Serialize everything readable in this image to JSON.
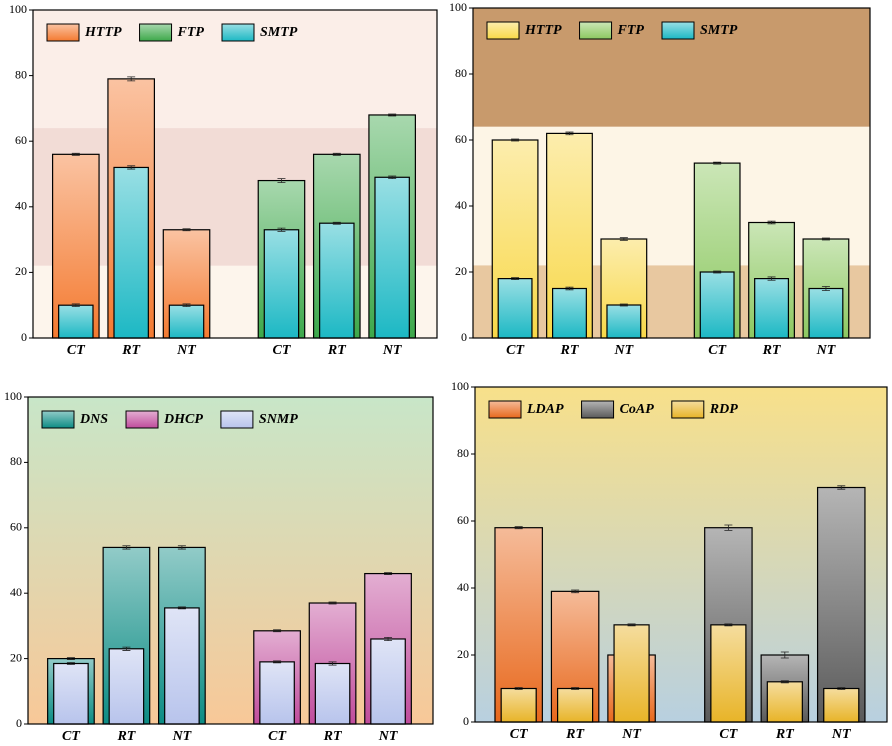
{
  "chart_data": [
    {
      "type": "bar",
      "categories": [
        "CT",
        "RT",
        "NT",
        "CT",
        "RT",
        "NT"
      ],
      "series": [
        {
          "name": "HTTP",
          "color": "#f47a30",
          "values": [
            56,
            79,
            33,
            null,
            null,
            null
          ],
          "errors": [
            0.3,
            0.6,
            0.3,
            null,
            null,
            null
          ]
        },
        {
          "name": "FTP",
          "color": "#3da84a",
          "values": [
            null,
            null,
            null,
            48,
            56,
            68
          ],
          "errors": [
            null,
            null,
            null,
            0.6,
            0.3,
            0.3
          ]
        },
        {
          "name": "SMTP",
          "color": "#1cb8c4",
          "values": [
            10,
            52,
            10,
            33,
            35,
            49
          ],
          "errors": [
            0.4,
            0.5,
            0.4,
            0.5,
            0.3,
            0.4
          ]
        }
      ],
      "ylim": [
        0,
        100
      ],
      "yticks": [
        0,
        20,
        40,
        60,
        80,
        100
      ]
    },
    {
      "type": "bar",
      "categories": [
        "CT",
        "RT",
        "NT",
        "CT",
        "RT",
        "NT"
      ],
      "series": [
        {
          "name": "HTTP",
          "color": "#f8d848",
          "values": [
            60,
            62,
            30,
            null,
            null,
            null
          ],
          "errors": [
            0.3,
            0.4,
            0.4,
            null,
            null,
            null
          ]
        },
        {
          "name": "FTP",
          "color": "#8cc860",
          "values": [
            null,
            null,
            null,
            53,
            35,
            30
          ],
          "errors": [
            null,
            null,
            null,
            0.3,
            0.4,
            0.3
          ]
        },
        {
          "name": "SMTP",
          "color": "#1cb8c4",
          "values": [
            18,
            15,
            10,
            20,
            18,
            15
          ],
          "errors": [
            0.3,
            0.4,
            0.3,
            0.3,
            0.5,
            0.6
          ]
        }
      ],
      "ylim": [
        0,
        100
      ],
      "yticks": [
        0,
        20,
        40,
        60,
        80,
        100
      ]
    },
    {
      "type": "bar",
      "categories": [
        "CT",
        "RT",
        "NT",
        "CT",
        "RT",
        "NT"
      ],
      "series": [
        {
          "name": "DNS",
          "color": "#0c8c84",
          "values": [
            20,
            54,
            54,
            null,
            null,
            null
          ],
          "errors": [
            0.3,
            0.5,
            0.5,
            null,
            null,
            null
          ]
        },
        {
          "name": "DHCP",
          "color": "#c04c9c",
          "values": [
            null,
            null,
            null,
            28.5,
            37,
            46
          ],
          "errors": [
            null,
            null,
            null,
            0.3,
            0.3,
            0.3
          ]
        },
        {
          "name": "SNMP",
          "color": "#b8c4ec",
          "values": [
            18.5,
            23,
            35.5,
            19,
            18.5,
            26
          ],
          "errors": [
            0.3,
            0.5,
            0.3,
            0.3,
            0.5,
            0.5
          ]
        }
      ],
      "ylim": [
        0,
        100
      ],
      "yticks": [
        0,
        20,
        40,
        60,
        80,
        100
      ]
    },
    {
      "type": "bar",
      "categories": [
        "CT",
        "RT",
        "NT",
        "CT",
        "RT",
        "NT"
      ],
      "series": [
        {
          "name": "LDAP",
          "color": "#e8681c",
          "values": [
            58,
            39,
            20,
            null,
            null,
            null
          ],
          "errors": [
            0.3,
            0.4,
            0.3,
            null,
            null,
            null
          ]
        },
        {
          "name": "CoAP",
          "color": "#5a5a5a",
          "values": [
            null,
            null,
            null,
            58,
            20,
            70
          ],
          "errors": [
            null,
            null,
            null,
            0.8,
            0.9,
            0.5
          ]
        },
        {
          "name": "RDP",
          "color": "#e8b428",
          "values": [
            10,
            10,
            29,
            29,
            12,
            10
          ],
          "errors": [
            0.3,
            0.3,
            0.3,
            0.3,
            0.3,
            0.3
          ]
        }
      ],
      "ylim": [
        0,
        100
      ],
      "yticks": [
        0,
        20,
        40,
        60,
        80,
        100
      ]
    }
  ]
}
